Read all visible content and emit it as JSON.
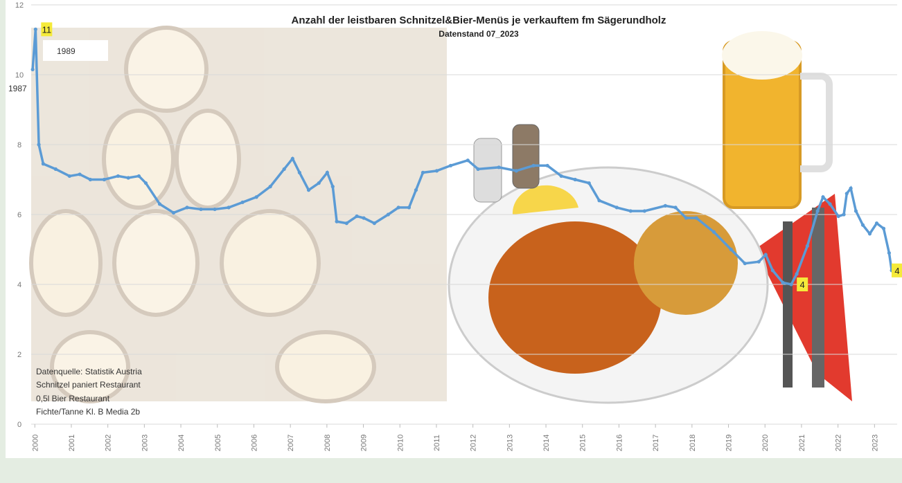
{
  "chart_data": {
    "type": "line",
    "title": "Anzahl der leistbaren Schnitzel&Bier-Menüs je verkauftem fm Sägerundholz",
    "subtitle": "Datenstand 07_2023",
    "annotations": [
      "1989",
      "1987"
    ],
    "notes": [
      "Datenquelle: Statistik Austria",
      "Schnitzel paniert Restaurant",
      "0,5l Bier Restaurant",
      "Fichte/Tanne Kl.  B Media 2b"
    ],
    "x": [
      1999.94,
      2000.02,
      2000.11,
      2000.23,
      2000.57,
      2000.95,
      2001.23,
      2001.52,
      2001.9,
      2002.28,
      2002.56,
      2002.85,
      2003.04,
      2003.42,
      2003.8,
      2004.17,
      2004.55,
      2004.93,
      2005.31,
      2005.69,
      2006.07,
      2006.45,
      2006.83,
      2007.06,
      2007.25,
      2007.5,
      2007.78,
      2008.01,
      2008.16,
      2008.27,
      2008.54,
      2008.82,
      2009.01,
      2009.3,
      2009.68,
      2009.96,
      2010.25,
      2010.44,
      2010.63,
      2011.01,
      2011.39,
      2011.86,
      2012.14,
      2012.71,
      2013.19,
      2013.66,
      2014.04,
      2014.42,
      2014.8,
      2015.18,
      2015.46,
      2015.94,
      2016.32,
      2016.7,
      2017.27,
      2017.55,
      2017.84,
      2018.12,
      2018.6,
      2019.07,
      2019.45,
      2019.83,
      2020.02,
      2020.21,
      2020.49,
      2020.72,
      2020.87,
      2021.16,
      2021.44,
      2021.59,
      2021.78,
      2022.01,
      2022.16,
      2022.24,
      2022.35,
      2022.49,
      2022.68,
      2022.87,
      2023.06,
      2023.25,
      2023.4,
      2023.47
    ],
    "series": [
      {
        "color": "#5b9bd5",
        "values": [
          10.15,
          11.3,
          8.0,
          7.45,
          7.3,
          7.1,
          7.15,
          7.0,
          7.0,
          7.1,
          7.05,
          7.1,
          6.9,
          6.3,
          6.05,
          6.2,
          6.15,
          6.15,
          6.2,
          6.35,
          6.5,
          6.8,
          7.3,
          7.6,
          7.2,
          6.7,
          6.9,
          7.2,
          6.8,
          5.8,
          5.75,
          5.95,
          5.9,
          5.75,
          6.0,
          6.2,
          6.2,
          6.7,
          7.2,
          7.25,
          7.4,
          7.55,
          7.3,
          7.35,
          7.25,
          7.4,
          7.4,
          7.1,
          7.0,
          6.9,
          6.4,
          6.2,
          6.1,
          6.1,
          6.25,
          6.2,
          5.9,
          5.9,
          5.5,
          5.0,
          4.6,
          4.65,
          4.85,
          4.4,
          4.05,
          4.0,
          4.3,
          5.1,
          6.1,
          6.5,
          6.3,
          5.95,
          6.0,
          6.6,
          6.75,
          6.1,
          5.7,
          5.45,
          5.75,
          5.6,
          4.9,
          4.4
        ],
        "value_labels": [
          null,
          "11",
          null,
          null,
          null,
          null,
          null,
          null,
          null,
          null,
          null,
          null,
          null,
          null,
          null,
          null,
          null,
          null,
          null,
          null,
          null,
          null,
          null,
          null,
          null,
          null,
          null,
          null,
          null,
          null,
          null,
          null,
          null,
          null,
          null,
          null,
          null,
          null,
          null,
          null,
          null,
          null,
          null,
          null,
          null,
          null,
          null,
          null,
          null,
          null,
          null,
          null,
          null,
          null,
          null,
          null,
          null,
          null,
          null,
          null,
          null,
          null,
          null,
          null,
          null,
          "4",
          null,
          null,
          null,
          null,
          null,
          null,
          null,
          null,
          null,
          null,
          null,
          null,
          null,
          null,
          null,
          "4"
        ]
      }
    ],
    "xlim": [
      1999.9,
      2023.62
    ],
    "xticks": [
      2000,
      2001,
      2002,
      2003,
      2004,
      2005,
      2006,
      2007,
      2008,
      2009,
      2010,
      2011,
      2012,
      2013,
      2014,
      2015,
      2016,
      2017,
      2018,
      2019,
      2020,
      2021,
      2022,
      2023
    ],
    "ylim": [
      0,
      12
    ],
    "yticks": [
      0,
      2,
      4,
      6,
      8,
      10,
      12
    ],
    "grid": true
  }
}
